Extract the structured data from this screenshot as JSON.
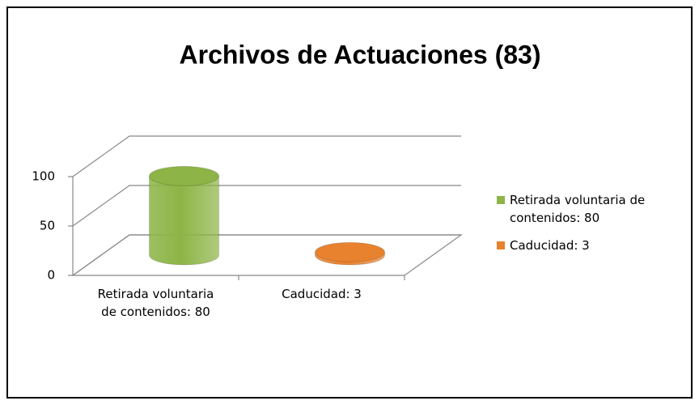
{
  "chart_data": {
    "type": "bar3d",
    "title": "Archivos de Actuaciones (83)",
    "categories": [
      "Retirada voluntaria de contenidos: 80",
      "Caducidad: 3"
    ],
    "values": [
      80,
      3
    ],
    "colors": [
      "#8db446",
      "#e8822e"
    ],
    "ylim": [
      0,
      100
    ],
    "yticks": [
      0,
      50,
      100
    ],
    "grid": true,
    "legend": "right"
  }
}
